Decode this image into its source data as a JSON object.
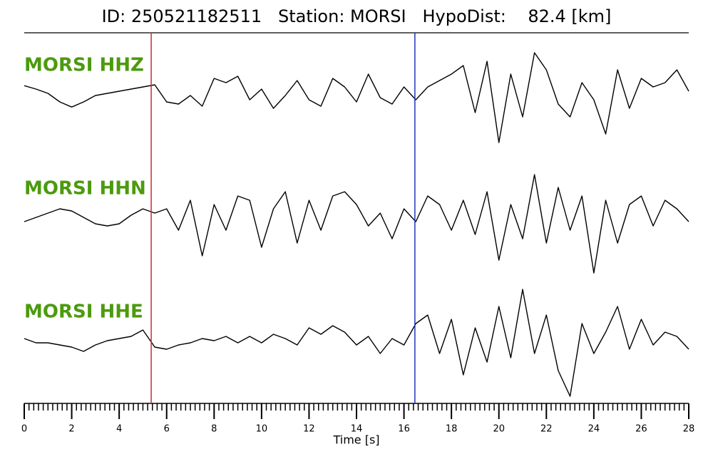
{
  "chart_data": {
    "type": "seismogram",
    "title": "ID: 250521182511   Station: MORSI   HypoDist:    82.4 [km]",
    "xlabel": "Time [s]",
    "xlim": [
      0,
      28
    ],
    "xticks": [
      0,
      2,
      4,
      6,
      8,
      10,
      12,
      14,
      16,
      18,
      20,
      22,
      24,
      26,
      28
    ],
    "xticks_minor": [
      0.2,
      0.4,
      0.6,
      0.8,
      1,
      1.2,
      1.4,
      1.6,
      1.8,
      2.2,
      2.4,
      2.6,
      2.8,
      3,
      3.2,
      3.4,
      3.6,
      3.8,
      4.2,
      4.4,
      4.6,
      4.8,
      5,
      5.2,
      5.4,
      5.6,
      5.8,
      6.2,
      6.4,
      6.6,
      6.8,
      7,
      7.2,
      7.4,
      7.6,
      7.8,
      8.2,
      8.4,
      8.6,
      8.8,
      9,
      9.2,
      9.4,
      9.6,
      9.8,
      10.2,
      10.4,
      10.6,
      10.8,
      11,
      11.2,
      11.4,
      11.6,
      11.8,
      12.2,
      12.4,
      12.6,
      12.8,
      13,
      13.2,
      13.4,
      13.6,
      13.8,
      14.2,
      14.4,
      14.6,
      14.8,
      15,
      15.2,
      15.4,
      15.6,
      15.8,
      16.2,
      16.4,
      16.6,
      16.8,
      17,
      17.2,
      17.4,
      17.6,
      17.8,
      18.2,
      18.4,
      18.6,
      18.8,
      19,
      19.2,
      19.4,
      19.6,
      19.8,
      20.2,
      20.4,
      20.6,
      20.8,
      21,
      21.2,
      21.4,
      21.6,
      21.8,
      22.2,
      22.4,
      22.6,
      22.8,
      23,
      23.2,
      23.4,
      23.6,
      23.8,
      24.2,
      24.4,
      24.6,
      24.8,
      25,
      25.2,
      25.4,
      25.6,
      25.8,
      26.2,
      26.4,
      26.6,
      26.8,
      27,
      27.2,
      27.4,
      27.6,
      27.8
    ],
    "picks": [
      {
        "x": 5.35,
        "color": "#d62728"
      },
      {
        "x": 16.46,
        "color": "#2233bb"
      }
    ],
    "label_color": "#4c9a0e",
    "line_color": "#000000",
    "x": [
      0,
      0.5,
      1,
      1.5,
      2,
      2.5,
      3,
      3.5,
      4,
      4.5,
      5,
      5.5,
      6,
      6.5,
      7,
      7.5,
      8,
      8.5,
      9,
      9.5,
      10,
      10.5,
      11,
      11.5,
      12,
      12.5,
      13,
      13.5,
      14,
      14.5,
      15,
      15.5,
      16,
      16.5,
      17,
      17.5,
      18,
      18.5,
      19,
      19.5,
      20,
      20.5,
      21,
      21.5,
      22,
      22.5,
      23,
      23.5,
      24,
      24.5,
      25,
      25.5,
      26,
      26.5,
      27,
      27.5,
      28
    ],
    "series": [
      {
        "name": "MORSI HHZ",
        "values": [
          0.13,
          0.05,
          -0.05,
          -0.25,
          -0.37,
          -0.25,
          -0.1,
          -0.05,
          0,
          0.05,
          0.1,
          0.15,
          -0.25,
          -0.3,
          -0.1,
          -0.35,
          0.3,
          0.2,
          0.35,
          -0.2,
          0.05,
          -0.4,
          -0.1,
          0.25,
          -0.2,
          -0.35,
          0.3,
          0.1,
          -0.25,
          0.4,
          -0.15,
          -0.3,
          0.1,
          -0.2,
          0.1,
          0.25,
          0.4,
          0.6,
          -0.5,
          0.7,
          -1.2,
          0.4,
          -0.6,
          0.9,
          0.5,
          -0.3,
          -0.6,
          0.2,
          -0.2,
          -1.0,
          0.5,
          -0.4,
          0.3,
          0.1,
          0.2,
          0.5,
          0
        ]
      },
      {
        "name": "MORSI HHN",
        "values": [
          -0.1,
          0,
          0.1,
          0.2,
          0.15,
          0,
          -0.15,
          -0.2,
          -0.15,
          0.05,
          0.2,
          0.1,
          0.2,
          -0.3,
          0.4,
          -0.9,
          0.3,
          -0.3,
          0.5,
          0.4,
          -0.7,
          0.2,
          0.6,
          -0.6,
          0.4,
          -0.3,
          0.5,
          0.6,
          0.3,
          -0.2,
          0.1,
          -0.5,
          0.2,
          -0.1,
          0.5,
          0.3,
          -0.3,
          0.4,
          -0.4,
          0.6,
          -1.0,
          0.3,
          -0.5,
          1.0,
          -0.6,
          0.7,
          -0.3,
          0.5,
          -1.3,
          0.4,
          -0.6,
          0.3,
          0.5,
          -0.2,
          0.4,
          0.2,
          -0.1
        ]
      },
      {
        "name": "MORSI HHE",
        "values": [
          0.05,
          -0.05,
          -0.05,
          -0.1,
          -0.15,
          -0.25,
          -0.1,
          0,
          0.05,
          0.1,
          0.25,
          -0.15,
          -0.2,
          -0.1,
          -0.05,
          0.05,
          0,
          0.1,
          -0.05,
          0.1,
          -0.05,
          0.15,
          0.05,
          -0.1,
          0.3,
          0.15,
          0.35,
          0.2,
          -0.1,
          0.1,
          -0.3,
          0.05,
          -0.1,
          0.4,
          0.6,
          -0.3,
          0.5,
          -0.8,
          0.3,
          -0.5,
          0.8,
          -0.4,
          1.2,
          -0.3,
          0.6,
          -0.7,
          -1.3,
          0.4,
          -0.3,
          0.2,
          0.8,
          -0.2,
          0.5,
          -0.1,
          0.2,
          0.1,
          -0.2
        ]
      }
    ]
  }
}
